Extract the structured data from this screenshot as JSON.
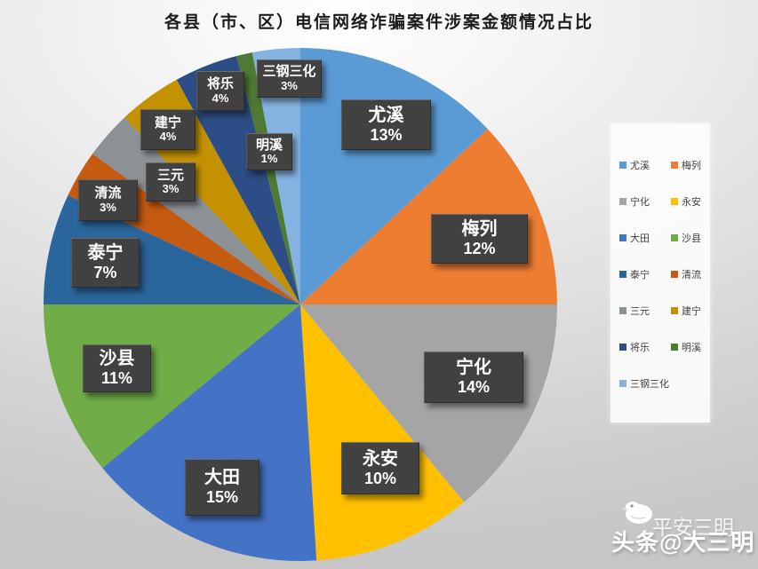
{
  "chart_data": {
    "type": "pie",
    "title": "各县（市、区）电信网络诈骗案件涉案金额情况占比",
    "unit": "percent",
    "start_angle_deg": 0,
    "direction": "clockwise",
    "legend_position": "right",
    "legend_columns": 2,
    "slices": [
      {
        "name": "尤溪",
        "value": 13,
        "pct_label": "13%",
        "color": "#5B9BD5"
      },
      {
        "name": "梅列",
        "value": 12,
        "pct_label": "12%",
        "color": "#ED7D31"
      },
      {
        "name": "宁化",
        "value": 14,
        "pct_label": "14%",
        "color": "#A5A5A5"
      },
      {
        "name": "永安",
        "value": 10,
        "pct_label": "10%",
        "color": "#FFC000"
      },
      {
        "name": "大田",
        "value": 15,
        "pct_label": "15%",
        "color": "#4472C4"
      },
      {
        "name": "沙县",
        "value": 11,
        "pct_label": "11%",
        "color": "#70AD47"
      },
      {
        "name": "泰宁",
        "value": 7,
        "pct_label": "7%",
        "color": "#2A669C"
      },
      {
        "name": "清流",
        "value": 3,
        "pct_label": "3%",
        "color": "#C55A11"
      },
      {
        "name": "三元",
        "value": 3,
        "pct_label": "3%",
        "color": "#8C9196"
      },
      {
        "name": "建宁",
        "value": 4,
        "pct_label": "4%",
        "color": "#C49200"
      },
      {
        "name": "将乐",
        "value": 4,
        "pct_label": "4%",
        "color": "#2C4D85"
      },
      {
        "name": "明溪",
        "value": 1,
        "pct_label": "1%",
        "color": "#4F7A33"
      },
      {
        "name": "三钢三化",
        "value": 3,
        "pct_label": "3%",
        "color": "#84B3E2"
      }
    ]
  },
  "watermark": {
    "front_prefix": "头条",
    "front_handle": "@大三明",
    "ghost_text": "平安三明",
    "icon": "duck-logo-icon",
    "text_color": "#FFFFFF"
  }
}
